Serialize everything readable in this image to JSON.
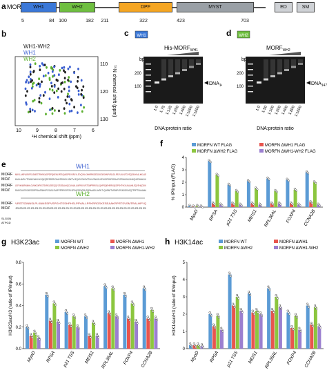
{
  "panel_a": {
    "label": "a",
    "protein": "MORF",
    "domains": [
      {
        "name": "WH1",
        "color": "#3b78d8"
      },
      {
        "name": "WH2",
        "color": "#6fbf40"
      },
      {
        "name": "DPF",
        "color": "#f5a623"
      },
      {
        "name": "MYST",
        "color": "#9aa0a6"
      },
      {
        "name": "ED",
        "color": "#cfd2d6"
      },
      {
        "name": "SM",
        "color": "#cfd2d6"
      }
    ],
    "ticks": [
      "5",
      "84",
      "100",
      "182",
      "211",
      "322",
      "423",
      "703"
    ]
  },
  "panel_b": {
    "label": "b",
    "legend": [
      "WH1-WH2",
      "WH1",
      "WH2"
    ],
    "xlabel": "¹H chemical shift (ppm)",
    "ylabel": "¹⁵N chemical shift (ppm)",
    "xticks": [
      "10",
      "9",
      "8",
      "7",
      "6"
    ],
    "yticks": [
      "110",
      "120",
      "130"
    ]
  },
  "panel_c": {
    "label": "c",
    "box": "WH1",
    "title": "His-MORF",
    "title_sub": "WH1",
    "bp_label": "bp",
    "markers": [
      "200",
      "100"
    ],
    "lanes": [
      "1:0",
      "1:75",
      "1:125",
      "1:250",
      "1:400",
      "1:1000",
      "1:1600"
    ],
    "arrow_label": "DNA",
    "arrow_sub": "147",
    "xlabel": "DNA:protein ratio"
  },
  "panel_d": {
    "label": "d",
    "box": "WH2",
    "title": "MORF",
    "title_sub": "WH2",
    "bp_label": "bp",
    "markers": [
      "200",
      "100"
    ],
    "lanes": [
      "1:0",
      "1:50",
      "1:100",
      "1:200",
      "1:400",
      "1:800",
      "1:1600"
    ],
    "arrow_label": "DNA",
    "arrow_sub": "147",
    "xlabel": "DNA:protein ratio"
  },
  "panel_e": {
    "label": "e",
    "wh1": "WH1",
    "wh2": "WH2",
    "row_labels": [
      "MORF",
      "MOZ",
      "MORF",
      "MOZ",
      "MORF",
      "MOZ"
    ],
    "sequences": [
      "MKVLANPLKRIFSLSNEETRHSKAGPDPQKENLPEEQIAIDPEVKRLYLSIYQYILKNHRRKDEDGKGIISKNPVSLIDLRSYLKLNTGVSQEAIYKALKKLAE",
      "MVKLANPLYTEWILEAIKKVKKQKQRPSEERICNAVSSSHGLDRKTVLEQLELSVKDGTILKVSNKGLNSYKDPDNPGRIALPKPRNHGKLDNKQNVDWNKLIK",
      "LEFVKNKRWMHLGVMKGKPLSTSKRKLSEEQQYCSSSAAHQCLKMALLVAPSKVVSTSWPRRKSLLQHPSIQEHRRKQKDPSHTVKVLNAAHILEQVSHQCIKK",
      "RAIEGLKESGAPSGRPPAASSHKIPCSASLSVAPPPPPKSPEPLSPSAEDPADPHSSRAAADLAVRKTLQHPAPTASPAPLPEASSISASQTPPPTSAAAMA",
      "VRSTSDNNSLPLKNNSSPVSPGHTSSHPHSLPPVALLPFKRRGSKESEAAKRPRTSVSMTRALHPYQ",
      "SSSSSSSSSSSSSSSSSSSSSSSSSSSSSSSSSS"
    ],
    "tail": [
      "SLGGN",
      "ATPGD"
    ]
  },
  "panel_f": {
    "label": "f",
    "ylabel": "% IP/input (FLAG)",
    "legend": [
      {
        "name": "MORFN WT FLAG",
        "color": "#5b9bd5"
      },
      {
        "name": "MORFN ΔWH1 FLAG",
        "color": "#e8554e"
      },
      {
        "name": "MORFN ΔWH2 FLAG",
        "color": "#8cc63f"
      },
      {
        "name": "MORFN ΔWH1-WH2 FLAG",
        "color": "#9b7fd0"
      }
    ],
    "yticks": [
      "0",
      "1",
      "2",
      "3",
      "4"
    ],
    "categories": [
      "MyoD",
      "RPSA",
      "p21 TSS",
      "MEIS1",
      "RPL36AL",
      "FOXP4",
      "CCNA2B"
    ]
  },
  "panel_g": {
    "label": "g",
    "title": "H3K23ac",
    "ylabel": "H3K23ac/H3 (ratio of IP/input)",
    "legend": [
      {
        "name": "MORFN WT",
        "color": "#5b9bd5"
      },
      {
        "name": "MORFN ΔWH1",
        "color": "#e8554e"
      },
      {
        "name": "MORFN ΔWH2",
        "color": "#8cc63f"
      },
      {
        "name": "MORFN ΔWH1-WH2",
        "color": "#9b7fd0"
      }
    ],
    "yticks": [
      "0.0",
      "0.2",
      "0.4",
      "0.6",
      "0.8"
    ],
    "categories": [
      "MyoD",
      "RPSA",
      "p21 TSS",
      "MEIS1",
      "RPL36AL",
      "FOXP4",
      "CCNA2B"
    ]
  },
  "panel_h": {
    "label": "h",
    "title": "H3K14ac",
    "ylabel": "H3K14ac/H3 (ratio of IP/input)",
    "legend": [
      {
        "name": "MORFN WT",
        "color": "#5b9bd5"
      },
      {
        "name": "MORFN ΔWH1",
        "color": "#e8554e"
      },
      {
        "name": "MORFN ΔWH2",
        "color": "#8cc63f"
      },
      {
        "name": "MORFN ΔWH1-WH2",
        "color": "#9b7fd0"
      }
    ],
    "yticks": [
      "0",
      "1",
      "2",
      "3",
      "4",
      "5"
    ],
    "categories": [
      "MyoD",
      "RPSA",
      "p21 TSS",
      "MEIS1",
      "RPL36AL",
      "FOXP4",
      "CCNA2B"
    ]
  },
  "chart_data": [
    {
      "type": "bar",
      "panel": "f",
      "categories": [
        "MyoD",
        "RPSA",
        "p21 TSS",
        "MEIS1",
        "RPL36AL",
        "FOXP4",
        "CCNA2B"
      ],
      "ylabel": "% IP/input (FLAG)",
      "ylim": [
        0,
        4
      ],
      "series": [
        {
          "name": "MORFN WT FLAG",
          "values": [
            0.1,
            3.7,
            1.8,
            2.1,
            2.3,
            2.2,
            2.8
          ]
        },
        {
          "name": "MORFN ΔWH1 FLAG",
          "values": [
            0.05,
            0.3,
            0.3,
            0.3,
            0.3,
            0.3,
            0.4
          ]
        },
        {
          "name": "MORFN ΔWH2 FLAG",
          "values": [
            0.1,
            2.6,
            1.3,
            1.5,
            1.3,
            1.4,
            2.0
          ]
        },
        {
          "name": "MORFN ΔWH1-WH2 FLAG",
          "values": [
            0.05,
            0.2,
            0.2,
            0.2,
            0.3,
            0.2,
            0.2
          ]
        }
      ]
    },
    {
      "type": "bar",
      "panel": "g",
      "title": "H3K23ac",
      "categories": [
        "MyoD",
        "RPSA",
        "p21 TSS",
        "MEIS1",
        "RPL36AL",
        "FOXP4",
        "CCNA2B"
      ],
      "ylabel": "H3K23ac/H3 (ratio of IP/input)",
      "ylim": [
        0,
        0.8
      ],
      "series": [
        {
          "name": "MORFN WT",
          "values": [
            0.2,
            0.5,
            0.34,
            0.3,
            0.58,
            0.5,
            0.56
          ]
        },
        {
          "name": "MORFN ΔWH1",
          "values": [
            0.12,
            0.26,
            0.22,
            0.12,
            0.33,
            0.28,
            0.28
          ]
        },
        {
          "name": "MORFN ΔWH2",
          "values": [
            0.15,
            0.42,
            0.3,
            0.24,
            0.56,
            0.42,
            0.36
          ]
        },
        {
          "name": "MORFN ΔWH1-WH2",
          "values": [
            0.1,
            0.25,
            0.2,
            0.12,
            0.3,
            0.25,
            0.28
          ]
        }
      ]
    },
    {
      "type": "bar",
      "panel": "h",
      "title": "H3K14ac",
      "categories": [
        "MyoD",
        "RPSA",
        "p21 TSS",
        "MEIS1",
        "RPL36AL",
        "FOXP4",
        "CCNA2B"
      ],
      "ylabel": "H3K14ac/H3 (ratio of IP/input)",
      "ylim": [
        0,
        5
      ],
      "series": [
        {
          "name": "MORFN WT",
          "values": [
            0.2,
            2.0,
            4.3,
            3.2,
            3.5,
            2.1,
            2.5
          ]
        },
        {
          "name": "MORFN ΔWH1",
          "values": [
            0.2,
            1.3,
            2.5,
            2.1,
            2.2,
            1.2,
            1.4
          ]
        },
        {
          "name": "MORFN ΔWH2",
          "values": [
            0.2,
            1.9,
            3.0,
            2.2,
            3.0,
            1.9,
            2.4
          ]
        },
        {
          "name": "MORFN ΔWH1-WH2",
          "values": [
            0.15,
            1.1,
            2.2,
            2.0,
            2.4,
            1.1,
            1.3
          ]
        }
      ]
    }
  ]
}
